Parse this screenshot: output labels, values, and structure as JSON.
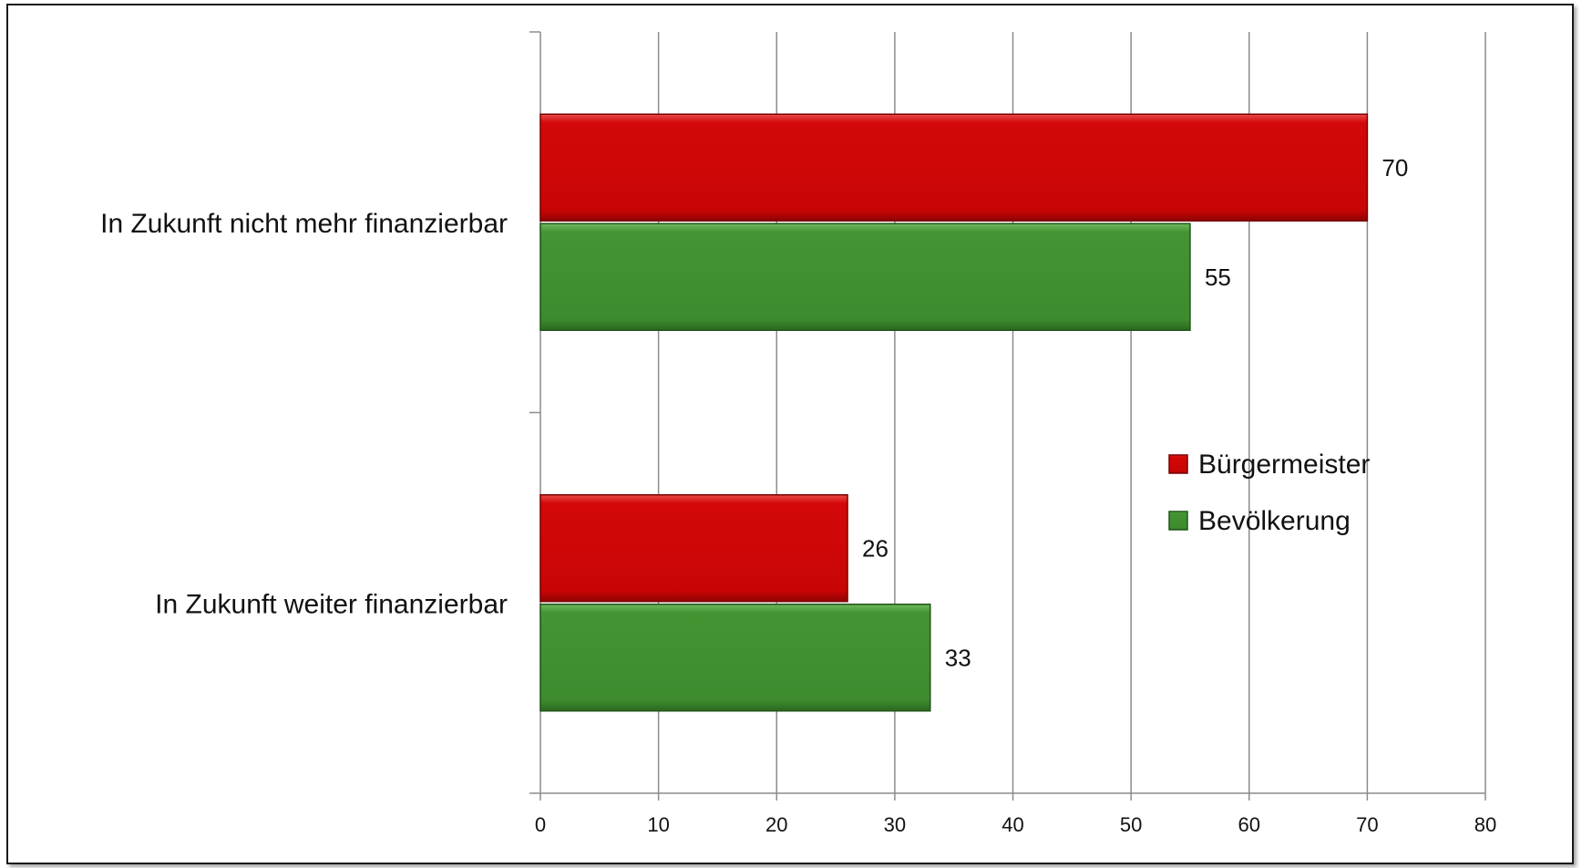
{
  "chart_data": {
    "type": "bar",
    "orientation": "horizontal",
    "categories": [
      "In Zukunft nicht mehr finanzierbar",
      "In Zukunft weiter finanzierbar"
    ],
    "series": [
      {
        "name": "Bürgermeister",
        "values": [
          70,
          26
        ],
        "color": "#cc0606"
      },
      {
        "name": "Bevölkerung",
        "values": [
          55,
          33
        ],
        "color": "#3e8e2f"
      }
    ],
    "xlim": [
      0,
      80
    ],
    "xticks": [
      "0",
      "10",
      "20",
      "30",
      "40",
      "50",
      "60",
      "70",
      "80"
    ],
    "grid": true,
    "legend_position": "right"
  }
}
